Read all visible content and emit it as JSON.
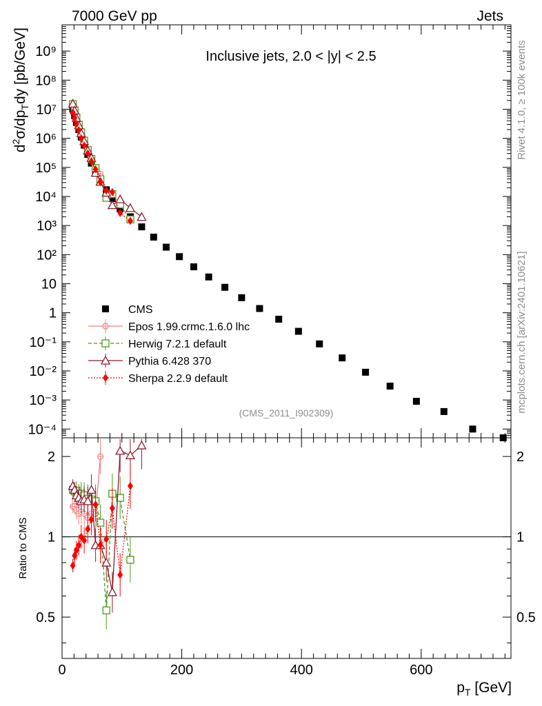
{
  "header": {
    "left": "7000 GeV pp",
    "right": "Jets"
  },
  "side": {
    "rivet": "Rivet 4.1.0, ≥ 100k events",
    "mcplots": "mcplots.cern.ch [arXiv:2401.10621]"
  },
  "chart_data": {
    "type": "scatter",
    "title": "Inclusive jets, 2.0 < |y| < 2.5",
    "analysis_label": "(CMS_2011_I902309)",
    "xlabel": "p_T [GeV]",
    "ylabel": "d²σ/dp_T dy [pb/GeV]",
    "ratio_ylabel": "Ratio to CMS",
    "xlim": [
      0,
      750
    ],
    "ylim": [
      5e-05,
      8000000000
    ],
    "ratio_ylim": [
      0.35,
      2.35
    ],
    "yscale": "log",
    "x_ticks": [
      "0",
      "200",
      "400",
      "600"
    ],
    "y_ticks": [
      "10⁻⁴",
      "10⁻³",
      "10⁻²",
      "10⁻¹",
      "1",
      "10",
      "10²",
      "10³",
      "10⁴",
      "10⁵",
      "10⁶",
      "10⁷",
      "10⁸",
      "10⁹"
    ],
    "ratio_ticks": [
      "0.5",
      "1",
      "2"
    ],
    "x": [
      18,
      21,
      24,
      28,
      32,
      37,
      43,
      49,
      56,
      64,
      74,
      84,
      97,
      114,
      133,
      153,
      174,
      196,
      220,
      245,
      272,
      300,
      330,
      362,
      395,
      430,
      468,
      507,
      548,
      592,
      638,
      686,
      737
    ],
    "series": [
      {
        "name": "CMS",
        "color": "#000000",
        "marker": "square",
        "line": "none",
        "x": [
          18,
          21,
          24,
          28,
          32,
          37,
          43,
          49,
          56,
          64,
          74,
          84,
          97,
          114,
          133,
          153,
          174,
          196,
          220,
          245,
          272,
          300,
          330,
          362,
          395,
          430,
          468,
          507,
          548,
          592,
          638,
          686,
          737
        ],
        "values": [
          10000000,
          6000000,
          3500000,
          2000000,
          1100000,
          580000,
          280000,
          140000,
          70000,
          35000,
          17000,
          8500,
          3800,
          2000,
          900,
          400,
          180,
          85,
          38,
          17,
          7.5,
          3.3,
          1.4,
          0.6,
          0.23,
          0.085,
          0.028,
          0.009,
          0.003,
          0.0009,
          0.0004,
          0.0001,
          5e-05
        ],
        "ratio": [
          1,
          1,
          1,
          1,
          1,
          1,
          1,
          1,
          1,
          1,
          1,
          1,
          1,
          1,
          1,
          1,
          1,
          1,
          1,
          1,
          1,
          1,
          1,
          1,
          1,
          1,
          1,
          1,
          1,
          1,
          1,
          1,
          1
        ]
      },
      {
        "name": "Epos 1.99.crmc.1.6.0 lhc",
        "color": "#f08080",
        "marker": "cross",
        "line": "solid",
        "x": [
          18,
          21,
          24,
          28,
          32,
          37,
          43,
          49,
          56,
          64
        ],
        "values": [
          13000000,
          7800000,
          4400000,
          2400000,
          1350000,
          700000,
          330000,
          170000,
          85000,
          60000
        ],
        "ratio": [
          1.3,
          1.3,
          1.26,
          1.22,
          1.24,
          1.22,
          1.18,
          1.22,
          1.22,
          2.0
        ]
      },
      {
        "name": "Herwig 7.2.1 default",
        "color": "#4a9a1a",
        "marker": "square-open",
        "line": "dashed",
        "x": [
          18,
          21,
          24,
          28,
          32,
          37,
          43,
          49,
          56,
          64,
          74,
          84,
          97,
          114
        ],
        "values": [
          15000000,
          9000000,
          5200000,
          2900000,
          1600000,
          830000,
          390000,
          195000,
          95000,
          39000,
          9000,
          12000,
          5300,
          1620
        ],
        "ratio": [
          1.5,
          1.48,
          1.49,
          1.44,
          1.45,
          1.43,
          1.39,
          1.38,
          1.36,
          1.13,
          0.53,
          1.45,
          1.4,
          0.82
        ]
      },
      {
        "name": "Pythia 6.428 370",
        "color": "#8b1a2e",
        "marker": "triangle-open",
        "line": "solid",
        "x": [
          18,
          21,
          24,
          28,
          32,
          37,
          43,
          49,
          56,
          64,
          74,
          84,
          97,
          114,
          133
        ],
        "values": [
          15500000,
          9000000,
          5000000,
          2800000,
          1500000,
          800000,
          380000,
          210000,
          65000,
          32000,
          13500,
          5000,
          8000,
          4000,
          1980
        ],
        "ratio": [
          1.55,
          1.5,
          1.43,
          1.4,
          1.36,
          1.38,
          1.36,
          1.5,
          0.93,
          0.93,
          0.8,
          0.62,
          2.1,
          2.02,
          2.2
        ]
      },
      {
        "name": "Sherpa 2.2.9 default",
        "color": "#ff0000",
        "marker": "diamond",
        "line": "dotted",
        "x": [
          18,
          21,
          24,
          28,
          32,
          37,
          43,
          49,
          56,
          64,
          74,
          84,
          97,
          114
        ],
        "values": [
          7800000,
          5100000,
          3100000,
          1900000,
          1000000,
          560000,
          300000,
          162000,
          86000,
          31000,
          16000,
          14000,
          2700,
          1440
        ],
        "ratio": [
          0.78,
          0.85,
          0.89,
          0.93,
          1.0,
          0.97,
          1.07,
          1.16,
          1.32,
          0.93,
          0.98,
          1.28,
          0.72,
          1.55
        ]
      }
    ],
    "legend_position": "middle-left"
  }
}
